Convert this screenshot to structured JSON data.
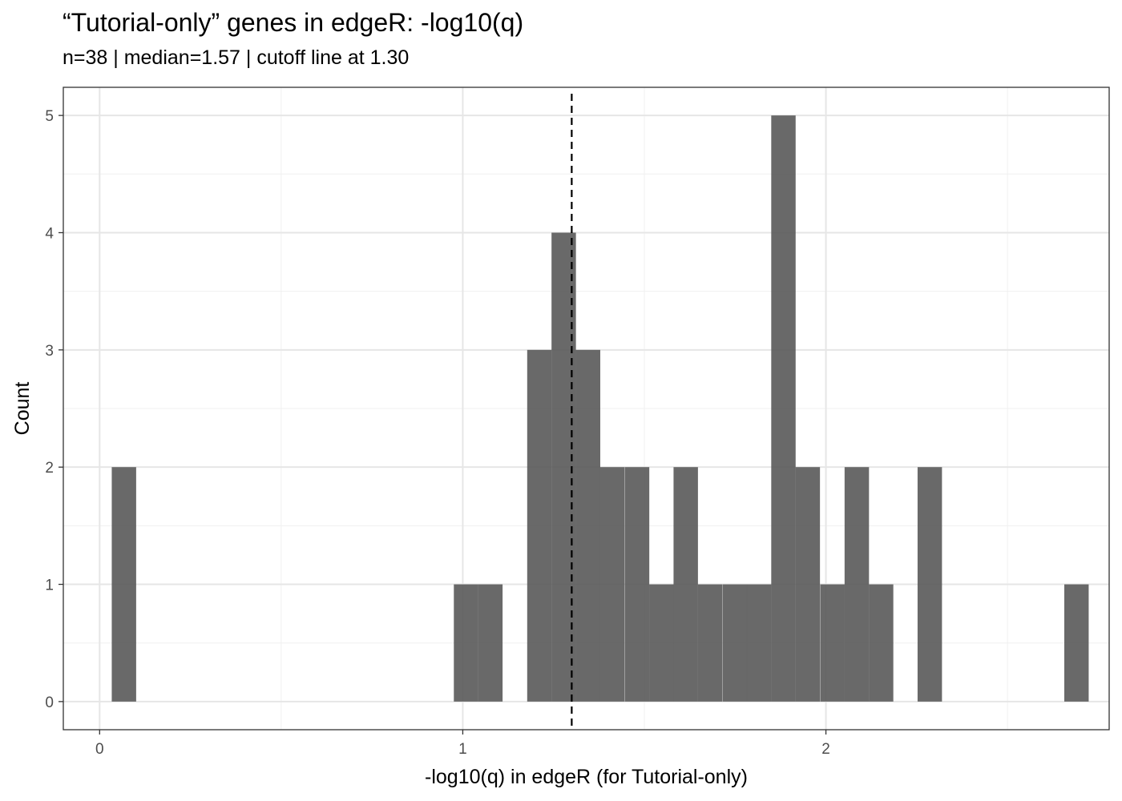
{
  "chart_data": {
    "type": "bar",
    "title": "“Tutorial-only” genes in edgeR: -log10(q)",
    "subtitle": "n=38 | median=1.57 | cutoff line at 1.30",
    "xlabel": "-log10(q) in edgeR (for Tutorial-only)",
    "ylabel": "Count",
    "xlim": [
      -0.1,
      2.78
    ],
    "ylim": [
      -0.24,
      5.24
    ],
    "x_ticks": [
      0,
      1,
      2
    ],
    "y_ticks": [
      0,
      1,
      2,
      3,
      4,
      5
    ],
    "grid": true,
    "cutoff": 1.3,
    "bin_width": 0.0672,
    "bins": [
      {
        "x": 0.067,
        "count": 2
      },
      {
        "x": 1.009,
        "count": 1
      },
      {
        "x": 1.076,
        "count": 1
      },
      {
        "x": 1.211,
        "count": 3
      },
      {
        "x": 1.278,
        "count": 4
      },
      {
        "x": 1.345,
        "count": 3
      },
      {
        "x": 1.412,
        "count": 2
      },
      {
        "x": 1.48,
        "count": 2
      },
      {
        "x": 1.547,
        "count": 1
      },
      {
        "x": 1.614,
        "count": 2
      },
      {
        "x": 1.681,
        "count": 1
      },
      {
        "x": 1.749,
        "count": 1
      },
      {
        "x": 1.816,
        "count": 1
      },
      {
        "x": 1.883,
        "count": 5
      },
      {
        "x": 1.95,
        "count": 2
      },
      {
        "x": 2.018,
        "count": 1
      },
      {
        "x": 2.085,
        "count": 2
      },
      {
        "x": 2.152,
        "count": 1
      },
      {
        "x": 2.286,
        "count": 2
      },
      {
        "x": 2.69,
        "count": 1
      }
    ],
    "bar_color": "#595959",
    "bar_opacity": 0.9
  }
}
